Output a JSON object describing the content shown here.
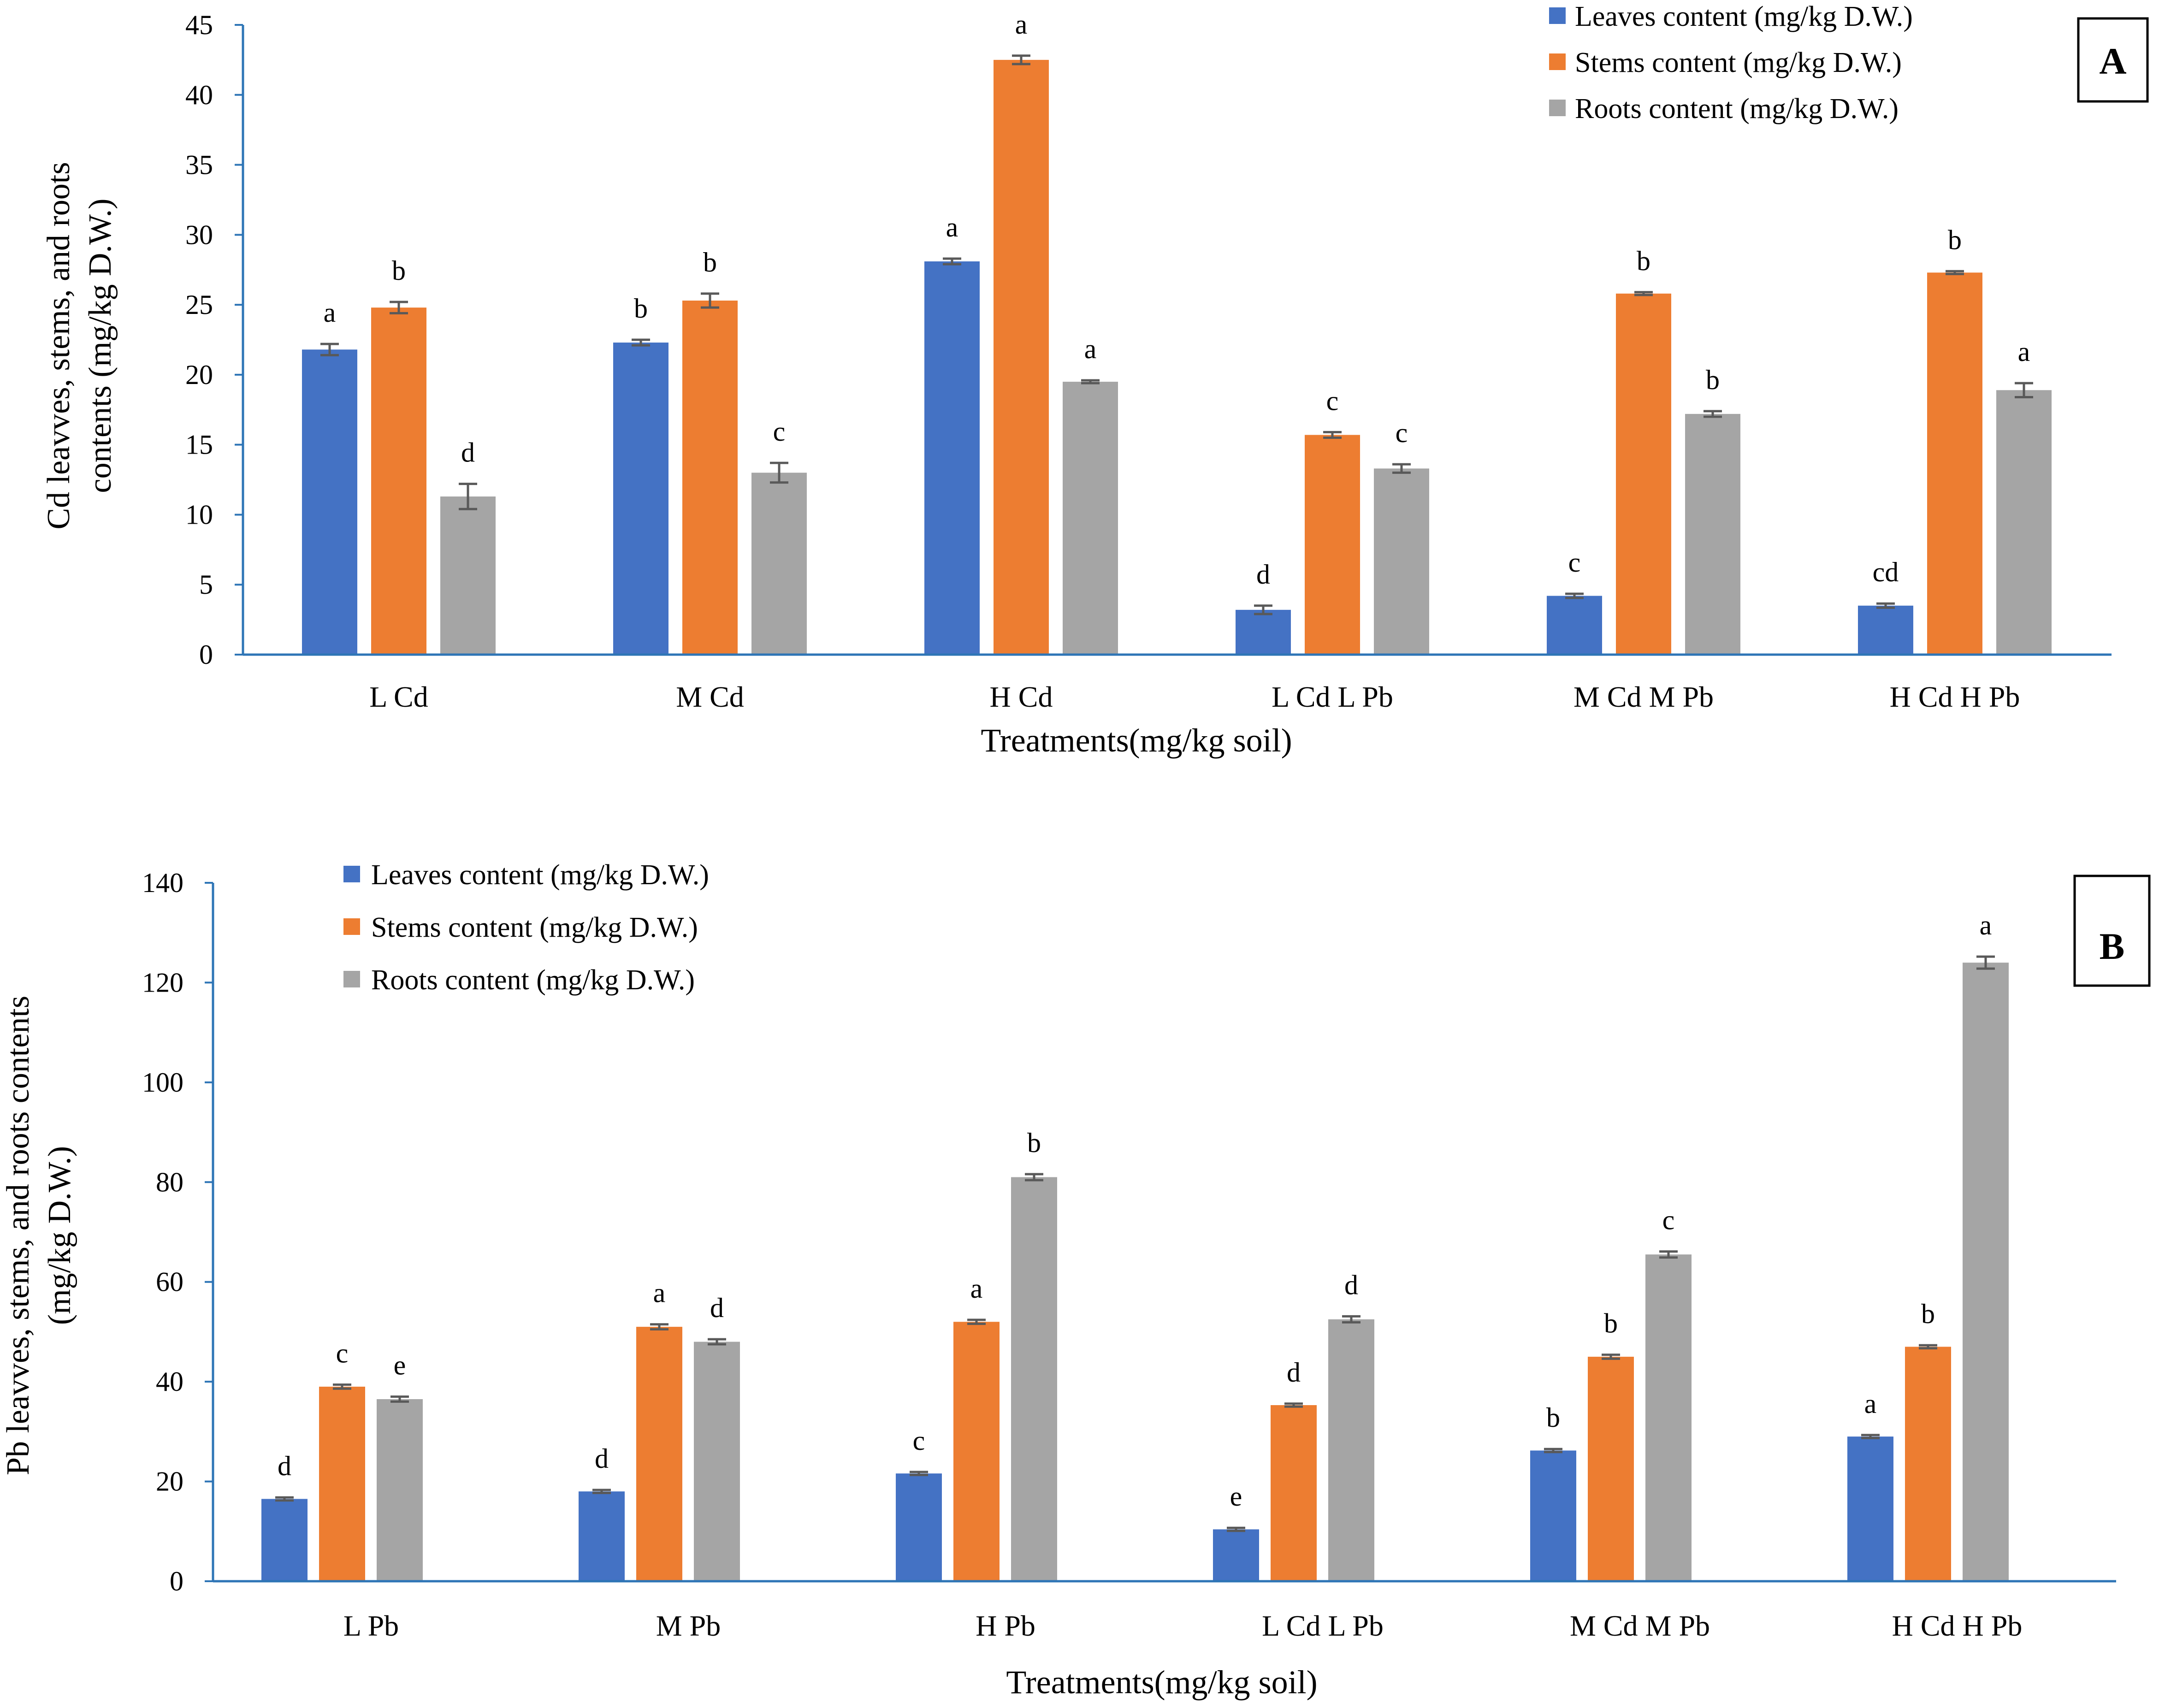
{
  "chart_data": [
    {
      "type": "bar",
      "panel_label": "A",
      "categories": [
        "L Cd",
        "M Cd",
        "H Cd",
        "L Cd L Pb",
        "M Cd M Pb",
        "H Cd H Pb"
      ],
      "series": [
        {
          "name": "Leaves content (mg/kg D.W.)",
          "color": "#4472C4",
          "values": [
            21.8,
            22.3,
            28.1,
            3.2,
            4.2,
            3.5
          ],
          "errors": [
            0.4,
            0.2,
            0.2,
            0.3,
            0.15,
            0.15
          ],
          "letters": [
            "a",
            "b",
            "a",
            "d",
            "c",
            "cd"
          ]
        },
        {
          "name": "Stems content (mg/kg D.W.)",
          "color": "#ED7D31",
          "values": [
            24.8,
            25.3,
            42.5,
            15.7,
            25.8,
            27.3
          ],
          "errors": [
            0.4,
            0.5,
            0.3,
            0.2,
            0.1,
            0.1
          ],
          "letters": [
            "b",
            "b",
            "a",
            "c",
            "b",
            "b"
          ]
        },
        {
          "name": "Roots content (mg/kg D.W.)",
          "color": "#A5A5A5",
          "values": [
            11.3,
            13.0,
            19.5,
            13.3,
            17.2,
            18.9
          ],
          "errors": [
            0.9,
            0.7,
            0.1,
            0.3,
            0.2,
            0.5
          ],
          "letters": [
            "d",
            "c",
            "a",
            "c",
            "b",
            "a"
          ]
        }
      ],
      "yticks": [
        "0",
        "5",
        "10",
        "15",
        "20",
        "25",
        "30",
        "35",
        "40",
        "45"
      ],
      "ylim": [
        0,
        45
      ],
      "xlabel": "Treatments(mg/kg soil)",
      "ylabel_lines": [
        "Cd leavves, stems, and roots",
        "contents (mg/kg D.W.)"
      ],
      "legend_position": "top-right"
    },
    {
      "type": "bar",
      "panel_label": "B",
      "categories": [
        "L Pb",
        "M Pb",
        "H Pb",
        "L Cd L Pb",
        "M Cd M Pb",
        "H Cd H Pb"
      ],
      "series": [
        {
          "name": "Leaves content (mg/kg D.W.)",
          "color": "#4472C4",
          "values": [
            16.5,
            18.0,
            21.6,
            10.4,
            26.2,
            29.0
          ],
          "errors": [
            0.3,
            0.3,
            0.3,
            0.3,
            0.3,
            0.3
          ],
          "letters": [
            "d",
            "d",
            "c",
            "e",
            "b",
            "a"
          ]
        },
        {
          "name": "Stems content (mg/kg D.W.)",
          "color": "#ED7D31",
          "values": [
            39.0,
            51.0,
            52.0,
            35.3,
            45.0,
            47.0
          ],
          "errors": [
            0.4,
            0.5,
            0.4,
            0.3,
            0.4,
            0.3
          ],
          "letters": [
            "c",
            "a",
            "a",
            "d",
            "b",
            "b"
          ]
        },
        {
          "name": "Roots content (mg/kg D.W.)",
          "color": "#A5A5A5",
          "values": [
            36.5,
            48.0,
            81.0,
            52.5,
            65.5,
            124.0
          ],
          "errors": [
            0.5,
            0.5,
            0.6,
            0.6,
            0.6,
            1.2
          ],
          "letters": [
            "e",
            "d",
            "b",
            "d",
            "c",
            "a"
          ]
        }
      ],
      "yticks": [
        "0",
        "20",
        "40",
        "60",
        "80",
        "100",
        "120",
        "140"
      ],
      "ylim": [
        0,
        140
      ],
      "xlabel": "Treatments(mg/kg soil)",
      "ylabel_lines": [
        "Pb leavves, stems, and roots contents",
        "(mg/kg D.W.)"
      ],
      "legend_position": "top-left"
    }
  ]
}
